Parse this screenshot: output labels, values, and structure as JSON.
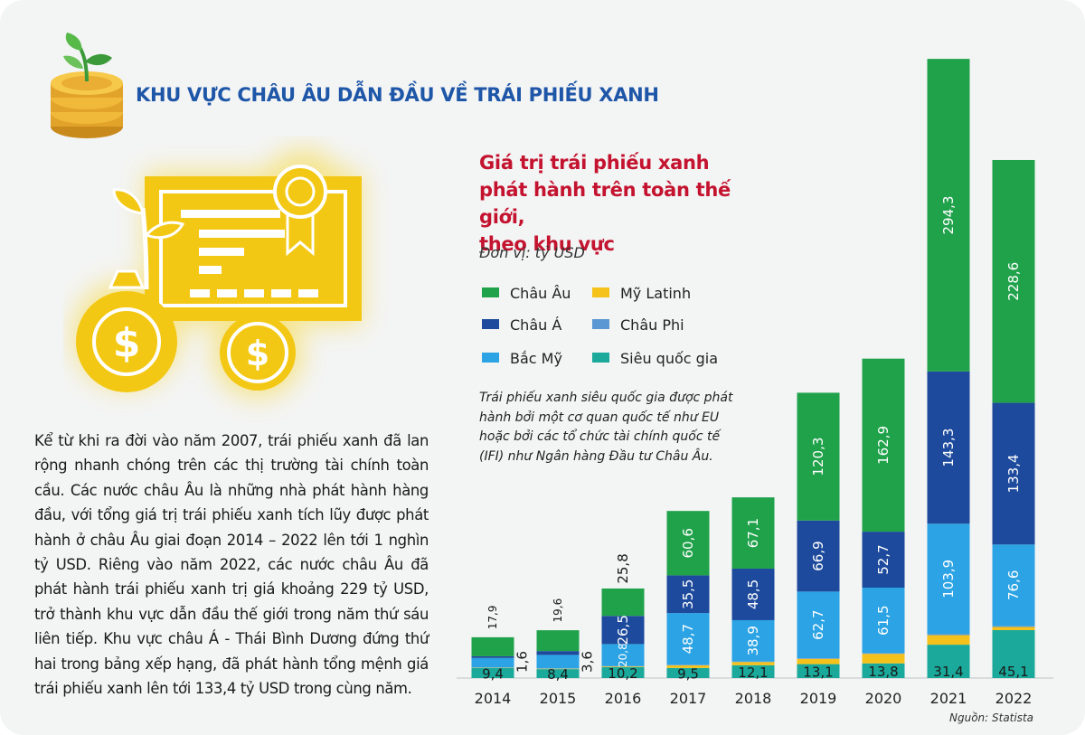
{
  "header": {
    "title": "KHU VỰC CHÂU ÂU DẪN ĐẦU VỀ TRÁI PHIẾU XANH"
  },
  "body_text": "Kể từ khi ra đời vào năm 2007, trái phiếu xanh đã lan rộng nhanh chóng trên các thị trường tài chính toàn cầu. Các nước châu Âu là những nhà phát hành hàng đầu, với tổng giá trị trái phiếu xanh tích lũy được phát hành ở châu Âu giai đoạn 2014 – 2022 lên tới 1 nghìn tỷ USD. Riêng vào năm 2022, các nước châu Âu đã phát hành trái phiếu xanh trị giá khoảng 229 tỷ USD, trở thành khu vực dẫn đầu thế giới trong năm thứ sáu liên tiếp. Khu vực châu Á - Thái Bình Dương đứng thứ hai trong bảng xếp hạng, đã phát hành tổng mệnh giá trái phiếu xanh lên tới 133,4 tỷ USD trong cùng năm.",
  "chart_note": "Trái phiếu xanh siêu quốc gia được phát hành bởi một cơ quan quốc tế như EU hoặc bởi các tổ chức tài chính quốc tế (IFI) như Ngân hàng Đầu tư Châu Âu.",
  "source": "Nguồn: Statista",
  "colors": {
    "title_blue": "#1e56a8",
    "chart_title_red": "#c4132f",
    "icon_yellow": "#f3c814",
    "background": "#f3f4f4"
  },
  "icons": [
    "coin-stack-sprout-icon",
    "green-bond-certificate-icon",
    "money-bag-icon",
    "dollar-coin-icon"
  ],
  "chart_data": {
    "type": "bar",
    "stacked": true,
    "title": "Giá trị trái phiếu xanh phát hành trên toàn thế giới, theo khu vực",
    "title_lines": [
      "Giá trị trái phiếu xanh",
      "phát hành trên toàn thế giới,",
      "theo khu vực"
    ],
    "unit": "Đơn vị:  tỷ USD",
    "categories": [
      "2014",
      "2015",
      "2016",
      "2017",
      "2018",
      "2019",
      "2020",
      "2021",
      "2022"
    ],
    "series": [
      {
        "name": "Siêu quốc gia",
        "color": "#1aa99a",
        "values": [
          9.4,
          8.4,
          10.2,
          9.5,
          12.1,
          13.1,
          13.8,
          31.4,
          45.1
        ],
        "labels": [
          "9,4",
          "8,4",
          "10,2",
          "9,5",
          "12,1",
          "13,1",
          "13,8",
          "31,4",
          "45,1"
        ]
      },
      {
        "name": "Mỹ Latinh",
        "color": "#f4c21a",
        "values": [
          0.3,
          0.4,
          0.7,
          2.5,
          3.0,
          5.0,
          9.0,
          9.0,
          3.0
        ],
        "labels": [
          "",
          "",
          "",
          "",
          "",
          "",
          "",
          "",
          ""
        ]
      },
      {
        "name": "Châu Phi",
        "color": "#5b97d3",
        "values": [
          0.2,
          0.3,
          0.3,
          0.5,
          0.5,
          0.6,
          0.8,
          1.0,
          1.0
        ],
        "labels": [
          "",
          "",
          "",
          "",
          "",
          "",
          "",
          "",
          ""
        ]
      },
      {
        "name": "Bắc Mỹ",
        "color": "#2ba3e4",
        "values": [
          9.0,
          12.7,
          20.8,
          48.7,
          38.9,
          62.7,
          61.5,
          103.9,
          76.6
        ],
        "labels": [
          "",
          "",
          "20,8",
          "48,7",
          "38,9",
          "62,7",
          "61,5",
          "103,9",
          "76,6"
        ]
      },
      {
        "name": "Châu Á",
        "color": "#1d4a9c",
        "values": [
          1.6,
          3.6,
          26.5,
          35.5,
          48.5,
          66.9,
          52.7,
          143.3,
          133.4
        ],
        "labels": [
          "",
          "",
          "26,5",
          "35,5",
          "48,5",
          "66,9",
          "52,7",
          "143,3",
          "133,4"
        ]
      },
      {
        "name": "Châu Âu",
        "color": "#20a24b",
        "values": [
          17.9,
          19.6,
          25.8,
          60.6,
          67.1,
          120.3,
          162.9,
          294.3,
          228.6
        ],
        "labels": [
          "17,9",
          "19,6",
          "25,8",
          "60,6",
          "67,1",
          "120,3",
          "162,9",
          "294,3",
          "228,6"
        ]
      }
    ],
    "outside_labels": [
      {
        "category": "2014",
        "text": "1,6"
      },
      {
        "category": "2015",
        "text": "3,6"
      }
    ],
    "legend": [
      {
        "name": "Châu Âu",
        "color": "#20a24b"
      },
      {
        "name": "Mỹ Latinh",
        "color": "#f4c21a"
      },
      {
        "name": "Châu Á",
        "color": "#1d4a9c"
      },
      {
        "name": "Châu Phi",
        "color": "#5b97d3"
      },
      {
        "name": "Bắc Mỹ",
        "color": "#2ba3e4"
      },
      {
        "name": "Siêu quốc gia",
        "color": "#1aa99a"
      }
    ],
    "legend_placement": "top-left of chart",
    "grid": false,
    "ylim": [
      0,
      640
    ]
  }
}
